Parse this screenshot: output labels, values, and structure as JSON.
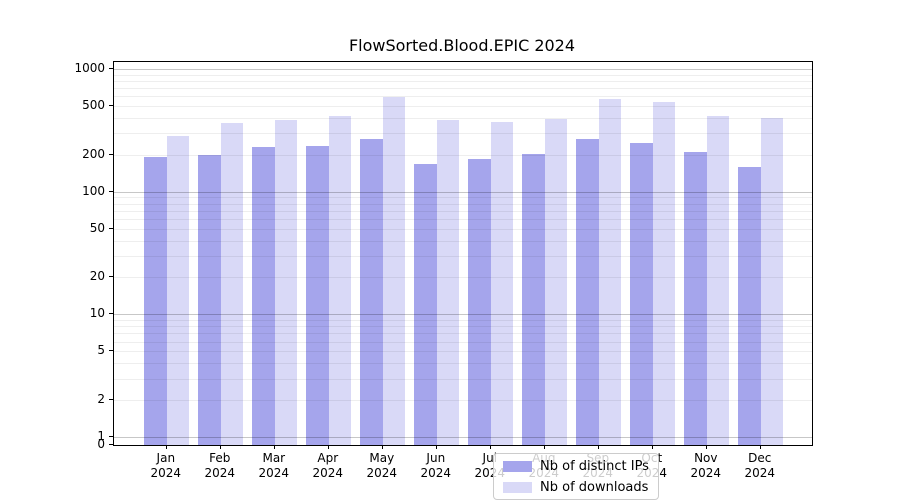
{
  "chart_data": {
    "type": "bar",
    "title": "FlowSorted.Blood.EPIC 2024",
    "categories": [
      "Jan",
      "Feb",
      "Mar",
      "Apr",
      "May",
      "Jun",
      "Jul",
      "Aug",
      "Sep",
      "Oct",
      "Nov",
      "Dec"
    ],
    "year_label": "2024",
    "series": [
      {
        "name": "Nb of distinct IPs",
        "color": "#a5a5ec",
        "values": [
          193,
          198,
          233,
          235,
          270,
          167,
          184,
          204,
          269,
          251,
          210,
          159
        ]
      },
      {
        "name": "Nb of downloads",
        "color": "#d9d9f7",
        "values": [
          284,
          360,
          384,
          414,
          591,
          385,
          370,
          391,
          566,
          541,
          412,
          402
        ]
      }
    ],
    "yscale": "symlog",
    "yticks": [
      0,
      1,
      2,
      5,
      10,
      20,
      50,
      100,
      200,
      500,
      1000
    ],
    "ylim": [
      0,
      1100
    ],
    "xlabel": "",
    "ylabel": "",
    "grid": true,
    "grid_minor_subs": [
      2,
      3,
      4,
      5,
      6,
      7,
      8,
      9
    ],
    "legend_position": "bottom-center",
    "colors": {
      "axis": "#000000",
      "background": "#ffffff"
    }
  }
}
